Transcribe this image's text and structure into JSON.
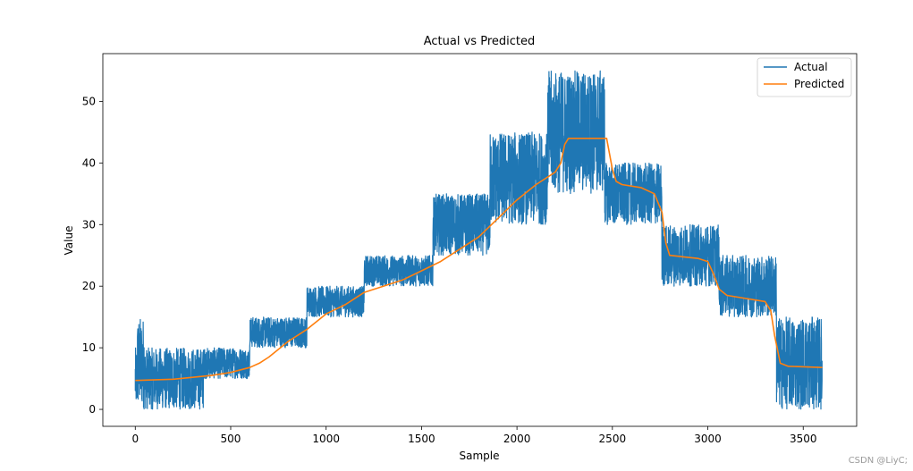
{
  "chart_data": {
    "type": "line",
    "title": "Actual vs Predicted",
    "xlabel": "Sample",
    "ylabel": "Value",
    "xlim": [
      -170,
      3780
    ],
    "ylim": [
      -2.75,
      57.75
    ],
    "xticks": [
      0,
      500,
      1000,
      1500,
      2000,
      2500,
      3000,
      3500
    ],
    "yticks": [
      0,
      10,
      20,
      30,
      40,
      50
    ],
    "legend": {
      "position": "upper right"
    },
    "grid": false,
    "actual_segments": [
      {
        "x_start": 0,
        "x_end": 10,
        "min": 0,
        "max": 10
      },
      {
        "x_start": 10,
        "x_end": 50,
        "min": 0,
        "max": 15
      },
      {
        "x_start": 50,
        "x_end": 360,
        "min": 0,
        "max": 10
      },
      {
        "x_start": 360,
        "x_end": 600,
        "min": 5,
        "max": 10
      },
      {
        "x_start": 600,
        "x_end": 900,
        "min": 10,
        "max": 15
      },
      {
        "x_start": 900,
        "x_end": 1200,
        "min": 15,
        "max": 20
      },
      {
        "x_start": 1200,
        "x_end": 1560,
        "min": 20,
        "max": 25
      },
      {
        "x_start": 1560,
        "x_end": 1860,
        "min": 25,
        "max": 35
      },
      {
        "x_start": 1860,
        "x_end": 2160,
        "min": 30,
        "max": 45
      },
      {
        "x_start": 2160,
        "x_end": 2460,
        "min": 35,
        "max": 55
      },
      {
        "x_start": 2460,
        "x_end": 2760,
        "min": 30,
        "max": 40
      },
      {
        "x_start": 2760,
        "x_end": 3060,
        "min": 20,
        "max": 30
      },
      {
        "x_start": 3060,
        "x_end": 3360,
        "min": 15,
        "max": 25
      },
      {
        "x_start": 3360,
        "x_end": 3600,
        "min": 0,
        "max": 15
      }
    ],
    "series": [
      {
        "name": "Predicted",
        "color": "#ff7f0e",
        "points": [
          [
            0,
            4.7
          ],
          [
            200,
            4.9
          ],
          [
            400,
            5.5
          ],
          [
            500,
            6.0
          ],
          [
            600,
            6.8
          ],
          [
            650,
            7.5
          ],
          [
            700,
            8.5
          ],
          [
            800,
            11.0
          ],
          [
            900,
            13.0
          ],
          [
            1000,
            15.5
          ],
          [
            1100,
            17.0
          ],
          [
            1200,
            19.0
          ],
          [
            1300,
            20.0
          ],
          [
            1400,
            21.0
          ],
          [
            1500,
            22.5
          ],
          [
            1600,
            24.0
          ],
          [
            1700,
            26.0
          ],
          [
            1800,
            28.0
          ],
          [
            1900,
            31.0
          ],
          [
            2000,
            34.0
          ],
          [
            2100,
            36.5
          ],
          [
            2200,
            38.5
          ],
          [
            2230,
            40.0
          ],
          [
            2250,
            43.0
          ],
          [
            2270,
            44.0
          ],
          [
            2470,
            44.0
          ],
          [
            2500,
            39.0
          ],
          [
            2520,
            37.0
          ],
          [
            2550,
            36.5
          ],
          [
            2650,
            36.0
          ],
          [
            2720,
            35.0
          ],
          [
            2760,
            32.0
          ],
          [
            2780,
            27.0
          ],
          [
            2800,
            25.0
          ],
          [
            2950,
            24.5
          ],
          [
            3000,
            24.0
          ],
          [
            3030,
            22.0
          ],
          [
            3060,
            19.5
          ],
          [
            3100,
            18.5
          ],
          [
            3300,
            17.5
          ],
          [
            3330,
            16.0
          ],
          [
            3350,
            12.0
          ],
          [
            3380,
            7.5
          ],
          [
            3420,
            7.0
          ],
          [
            3600,
            6.8
          ]
        ]
      }
    ],
    "legend_entries": [
      {
        "label": "Actual",
        "color": "#1f77b4"
      },
      {
        "label": "Predicted",
        "color": "#ff7f0e"
      }
    ]
  },
  "watermark": "CSDN @LiyC;"
}
